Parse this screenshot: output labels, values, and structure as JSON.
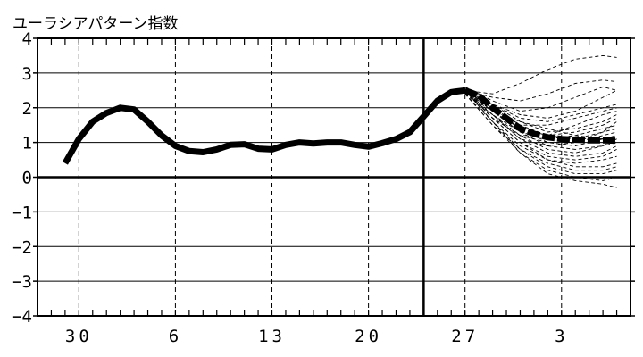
{
  "chart_data": {
    "type": "line",
    "title": "ユーラシアパターン指数",
    "xlabel": "",
    "ylabel": "",
    "ylim": [
      -4,
      4
    ],
    "yticks": [
      "4",
      "3",
      "2",
      "1",
      "0",
      "−1",
      "−2",
      "−3",
      "−4"
    ],
    "xtick_labels": [
      {
        "label": "30",
        "day": 30
      },
      {
        "label": "6",
        "day": 37
      },
      {
        "label": "13",
        "day": 44
      },
      {
        "label": "20",
        "day": 51
      },
      {
        "label": "27",
        "day": 58
      },
      {
        "label": "3",
        "day": 65
      }
    ],
    "xlim": [
      27,
      70
    ],
    "forecast_start_day": 55,
    "grid": true,
    "series": [
      {
        "role": "analysis",
        "x": [
          29,
          30,
          31,
          32,
          33,
          34,
          35,
          36,
          37,
          38,
          39,
          40,
          41,
          42,
          43,
          44,
          45,
          46,
          47,
          48,
          49,
          50,
          51,
          52,
          53,
          54,
          55,
          56,
          57,
          58
        ],
        "y": [
          0.4,
          1.1,
          1.6,
          1.85,
          2.0,
          1.95,
          1.6,
          1.2,
          0.9,
          0.75,
          0.72,
          0.8,
          0.93,
          0.95,
          0.82,
          0.8,
          0.93,
          1.0,
          0.97,
          1.0,
          1.0,
          0.93,
          0.88,
          0.98,
          1.1,
          1.3,
          1.75,
          2.2,
          2.45,
          2.5
        ]
      },
      {
        "role": "ensemble-mean",
        "x": [
          58,
          59,
          60,
          61,
          62,
          63,
          64,
          65,
          66,
          67,
          68,
          69
        ],
        "y": [
          2.5,
          2.35,
          2.0,
          1.7,
          1.4,
          1.25,
          1.15,
          1.1,
          1.08,
          1.06,
          1.06,
          1.05
        ]
      },
      {
        "role": "ensemble-members",
        "x": [
          58,
          60,
          62,
          64,
          66,
          68,
          69
        ],
        "members": [
          [
            2.5,
            2.4,
            2.7,
            3.1,
            3.4,
            3.5,
            3.45
          ],
          [
            2.5,
            2.3,
            2.2,
            2.4,
            2.7,
            2.8,
            2.75
          ],
          [
            2.6,
            2.2,
            1.9,
            2.0,
            2.3,
            2.6,
            2.5
          ],
          [
            2.4,
            2.1,
            1.8,
            1.7,
            1.9,
            2.3,
            2.5
          ],
          [
            2.5,
            2.1,
            1.7,
            1.6,
            1.8,
            2.0,
            2.1
          ],
          [
            2.5,
            2.0,
            1.5,
            1.5,
            1.7,
            1.9,
            2.0
          ],
          [
            2.6,
            2.1,
            1.6,
            1.3,
            1.4,
            1.6,
            1.8
          ],
          [
            2.5,
            1.9,
            1.4,
            1.2,
            1.3,
            1.5,
            1.7
          ],
          [
            2.4,
            2.0,
            1.5,
            1.2,
            1.1,
            1.3,
            1.6
          ],
          [
            2.5,
            1.8,
            1.3,
            1.1,
            1.2,
            1.4,
            1.5
          ],
          [
            2.5,
            2.0,
            1.4,
            1.0,
            1.0,
            1.2,
            1.3
          ],
          [
            2.4,
            1.8,
            1.2,
            1.0,
            0.9,
            1.1,
            1.2
          ],
          [
            2.5,
            1.9,
            1.3,
            0.9,
            0.8,
            0.9,
            1.1
          ],
          [
            2.5,
            1.7,
            1.2,
            0.8,
            0.7,
            0.9,
            1.0
          ],
          [
            2.4,
            1.8,
            1.1,
            0.7,
            0.6,
            0.7,
            0.9
          ],
          [
            2.5,
            1.7,
            1.0,
            0.6,
            0.5,
            0.6,
            0.8
          ],
          [
            2.4,
            1.6,
            0.9,
            0.5,
            0.4,
            0.5,
            0.6
          ],
          [
            2.5,
            1.7,
            1.0,
            0.5,
            0.3,
            0.3,
            0.4
          ],
          [
            2.4,
            1.5,
            0.8,
            0.4,
            0.2,
            0.2,
            0.3
          ],
          [
            2.5,
            1.6,
            0.8,
            0.3,
            0.1,
            0.1,
            0.2
          ],
          [
            2.4,
            1.5,
            0.7,
            0.2,
            0.0,
            -0.1,
            0.0
          ],
          [
            2.5,
            1.6,
            0.7,
            0.1,
            -0.1,
            -0.2,
            -0.3
          ],
          [
            2.5,
            1.7,
            1.2,
            1.2,
            1.5,
            1.8,
            1.9
          ],
          [
            2.4,
            1.9,
            1.6,
            1.4,
            1.2,
            1.1,
            1.0
          ],
          [
            2.5,
            1.8,
            1.1,
            0.9,
            1.0,
            1.3,
            1.4
          ]
        ]
      }
    ]
  }
}
